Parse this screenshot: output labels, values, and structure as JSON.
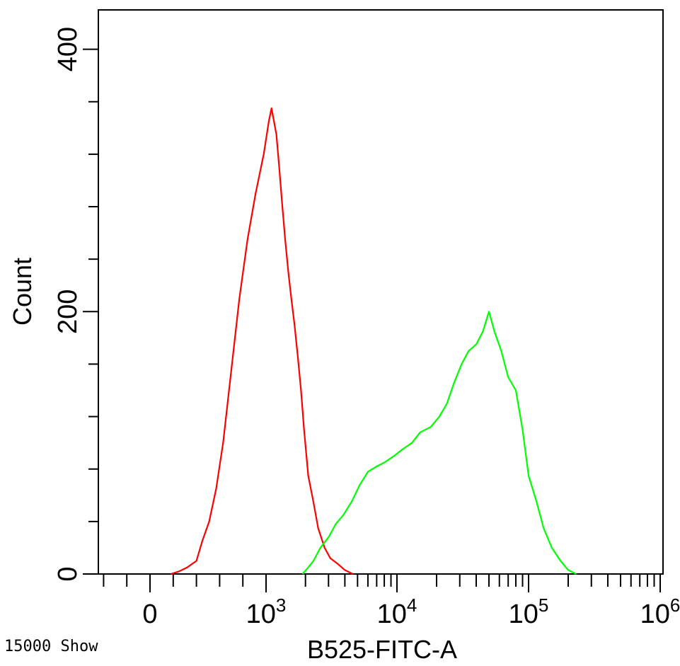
{
  "chart_data": {
    "type": "line",
    "title": "",
    "xlabel": "B525-FITC-A",
    "ylabel": "Count",
    "x_scale": "biexponential",
    "x_tick_labels": [
      {
        "value": 0,
        "label": "0"
      },
      {
        "value": 1000,
        "label": "10",
        "exponent": "3"
      },
      {
        "value": 10000,
        "label": "10",
        "exponent": "4"
      },
      {
        "value": 100000,
        "label": "10",
        "exponent": "5"
      },
      {
        "value": 1000000,
        "label": "10",
        "exponent": "6"
      }
    ],
    "y_tick_labels": [
      "0",
      "200",
      "400"
    ],
    "ylim": [
      0,
      430
    ],
    "grid": false,
    "series": [
      {
        "color": "#ff0000",
        "x": [
          180,
          250,
          320,
          400,
          450,
          510,
          570,
          630,
          700,
          770,
          840,
          910,
          980,
          1050,
          1100,
          1150,
          1200,
          1260,
          1320,
          1400,
          1480,
          1560,
          1650,
          1750,
          1850,
          1950,
          2100,
          2300,
          2500,
          2800,
          3100,
          3500,
          4000,
          4600
        ],
        "values": [
          0,
          2,
          5,
          10,
          25,
          40,
          65,
          100,
          155,
          210,
          255,
          290,
          320,
          345,
          355,
          345,
          335,
          310,
          285,
          255,
          230,
          210,
          190,
          165,
          140,
          110,
          75,
          55,
          35,
          20,
          12,
          8,
          3,
          0
        ]
      },
      {
        "color": "#00ff00",
        "x": [
          1900,
          2100,
          2300,
          2600,
          3000,
          3400,
          3900,
          4500,
          5200,
          6000,
          7000,
          8000,
          9500,
          11000,
          13000,
          15000,
          18000,
          21000,
          24000,
          27000,
          31000,
          35000,
          40000,
          45000,
          50000,
          55000,
          62000,
          70000,
          80000,
          90000,
          100000,
          115000,
          130000,
          150000,
          175000,
          200000,
          230000
        ],
        "values": [
          0,
          5,
          10,
          20,
          28,
          38,
          45,
          55,
          68,
          78,
          82,
          85,
          90,
          95,
          100,
          108,
          112,
          120,
          130,
          145,
          160,
          170,
          175,
          185,
          200,
          185,
          170,
          150,
          140,
          110,
          75,
          55,
          35,
          20,
          10,
          3,
          0
        ]
      }
    ]
  },
  "footer": {
    "event_count": "15000 Show"
  }
}
